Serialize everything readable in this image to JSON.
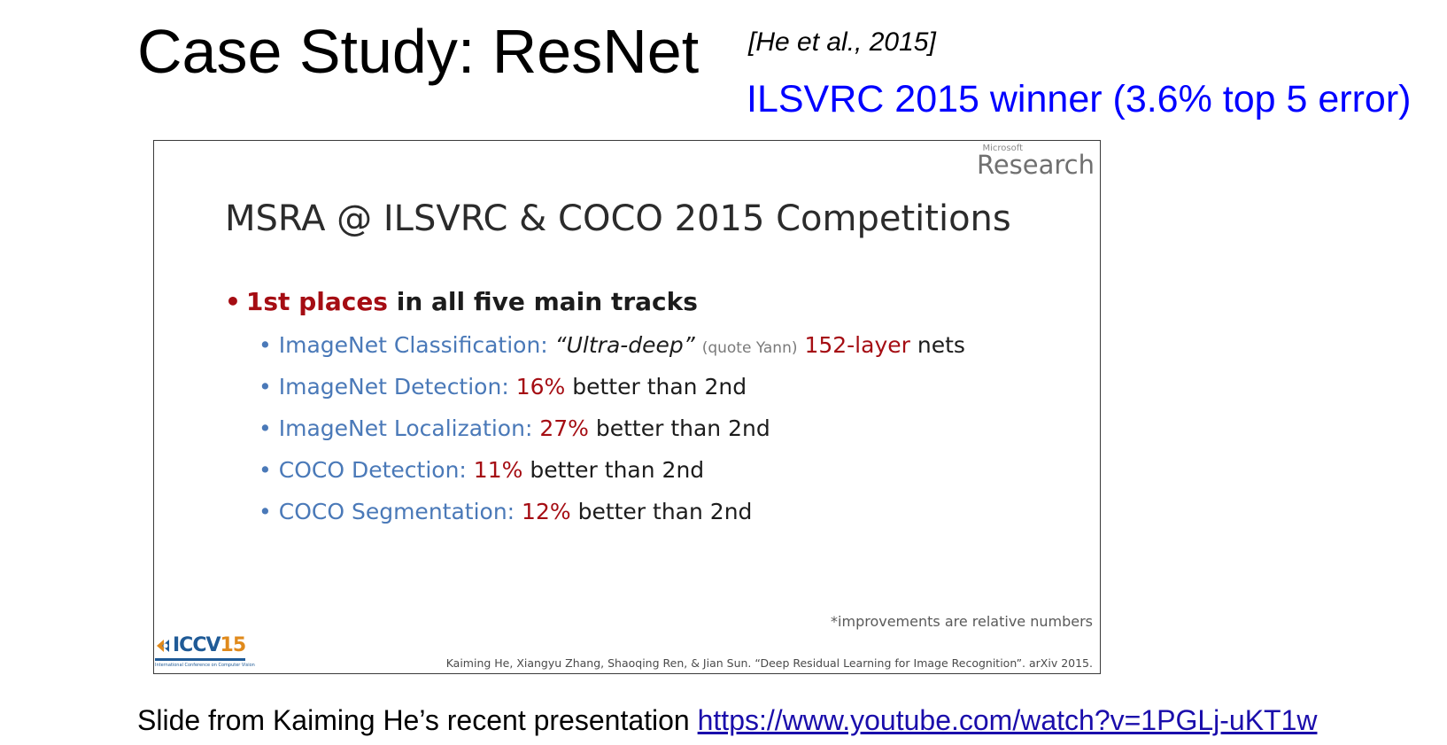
{
  "header": {
    "title": "Case Study: ResNet",
    "citation": "[He et al., 2015]",
    "subtitle": "ILSVRC 2015 winner (3.6% top 5 error)"
  },
  "slide": {
    "logo_small": "Microsoft",
    "logo_large": "Research",
    "title": "MSRA @ ILSVRC & COCO 2015 Competitions",
    "main_bullet": {
      "highlight": "1st places",
      "rest": " in all five main tracks"
    },
    "items": [
      {
        "label": "ImageNet Classification: ",
        "quote": "“Ultra-deep”",
        "aside": "(quote Yann)",
        "value": "152-layer",
        "suffix": " nets"
      },
      {
        "label": "ImageNet Detection: ",
        "value": "16%",
        "suffix": " better than 2nd"
      },
      {
        "label": "ImageNet Localization: ",
        "value": "27%",
        "suffix": " better than 2nd"
      },
      {
        "label": "COCO Detection: ",
        "value": "11%",
        "suffix": " better than 2nd"
      },
      {
        "label": "COCO Segmentation: ",
        "value": "12%",
        "suffix": " better than 2nd"
      }
    ],
    "footnote": "*improvements are relative numbers",
    "reference": "Kaiming He, Xiangyu Zhang, Shaoqing Ren, & Jian Sun. “Deep Residual Learning for Image Recognition”. arXiv 2015.",
    "conference_logo": {
      "text": "ICCV",
      "number": "15",
      "tagline": "International Conference on Computer Vision"
    }
  },
  "footer": {
    "text": "Slide from Kaiming He’s recent presentation ",
    "link": "https://www.youtube.com/watch?v=1PGLj-uKT1w"
  },
  "colors": {
    "link_blue": "#0000ff",
    "slide_red": "#a50d13",
    "slide_blue": "#4a79b8"
  }
}
